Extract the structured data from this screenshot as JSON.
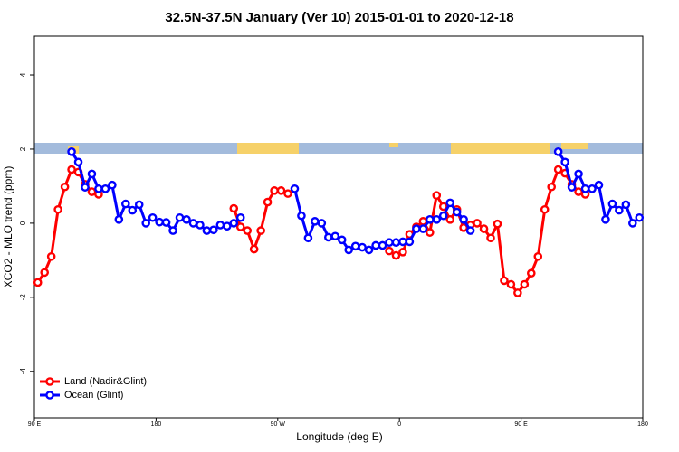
{
  "chart_data": {
    "type": "line",
    "title": "32.5N-37.5N January (Ver 10)   2015-01-01 to 2020-12-18",
    "x_label": "Longitude (deg E)",
    "y_label": "XCO2 - MLO trend (ppm)",
    "x": [
      92.5,
      97.5,
      102.5,
      107.5,
      112.5,
      117.5,
      122.5,
      127.5,
      132.5,
      137.5,
      142.5,
      147.5,
      152.5,
      157.5,
      162.5,
      167.5,
      172.5,
      177.5,
      182.5,
      187.5,
      192.5,
      197.5,
      202.5,
      207.5,
      212.5,
      217.5,
      222.5,
      227.5,
      232.5,
      237.5,
      242.5,
      247.5,
      252.5,
      257.5,
      262.5,
      267.5,
      272.5,
      277.5,
      282.5,
      287.5,
      292.5,
      297.5,
      302.5,
      307.5,
      312.5,
      317.5,
      322.5,
      327.5,
      332.5,
      337.5,
      342.5,
      347.5,
      352.5,
      357.5,
      362.5,
      367.5,
      372.5,
      377.5,
      382.5,
      387.5,
      392.5,
      397.5,
      402.5,
      407.5,
      412.5,
      417.5,
      422.5,
      427.5,
      432.5,
      437.5,
      442.5,
      447.5,
      452.5,
      457.5,
      462.5,
      467.5,
      472.5,
      477.5,
      482.5,
      487.5,
      492.5,
      497.5,
      502.5,
      507.5,
      512.5,
      517.5,
      522.5,
      527.5,
      532.5,
      537.5
    ],
    "series": [
      {
        "name": "Land (Nadir&Glint)",
        "color": "#ff0000",
        "values": [
          -1.6,
          -1.33,
          -0.9,
          0.37,
          0.98,
          1.45,
          1.38,
          1.05,
          0.85,
          0.78,
          null,
          null,
          null,
          null,
          null,
          null,
          null,
          null,
          null,
          null,
          null,
          null,
          null,
          null,
          null,
          null,
          null,
          null,
          null,
          0.4,
          -0.1,
          -0.2,
          -0.7,
          -0.2,
          0.57,
          0.88,
          0.88,
          0.8,
          null,
          null,
          null,
          null,
          null,
          null,
          null,
          null,
          null,
          null,
          null,
          null,
          null,
          null,
          -0.75,
          -0.87,
          -0.78,
          -0.3,
          -0.1,
          0.05,
          -0.25,
          0.75,
          0.45,
          0.1,
          0.37,
          -0.12,
          -0.05,
          0,
          -0.15,
          -0.4,
          -0.02,
          -1.55,
          -1.65,
          -1.88,
          -1.65,
          -1.35,
          -0.9,
          0.37,
          0.98,
          1.45,
          1.35,
          1.05,
          0.85,
          0.78,
          null,
          null,
          null,
          null,
          null,
          null,
          null,
          null
        ]
      },
      {
        "name": "Ocean (Glint)",
        "color": "#0000ff",
        "values": [
          null,
          null,
          null,
          null,
          null,
          1.93,
          1.65,
          0.97,
          1.33,
          0.93,
          0.93,
          1.03,
          0.1,
          0.52,
          0.35,
          0.5,
          0,
          0.15,
          0.03,
          0.02,
          -0.2,
          0.15,
          0.1,
          0,
          -0.05,
          -0.2,
          -0.18,
          -0.05,
          -0.08,
          0,
          0.15,
          null,
          null,
          null,
          null,
          null,
          null,
          null,
          0.93,
          0.2,
          -0.4,
          0.05,
          0,
          -0.38,
          -0.35,
          -0.45,
          -0.72,
          -0.62,
          -0.65,
          -0.72,
          -0.6,
          -0.6,
          -0.52,
          -0.52,
          -0.5,
          -0.5,
          -0.15,
          -0.15,
          0.1,
          0.1,
          0.2,
          0.55,
          0.3,
          0.1,
          -0.2,
          null,
          null,
          null,
          null,
          null,
          null,
          null,
          null,
          null,
          null,
          null,
          null,
          1.93,
          1.65,
          0.97,
          1.33,
          0.93,
          0.93,
          1.03,
          0.1,
          0.52,
          0.35,
          0.5,
          0,
          0.15
        ]
      }
    ],
    "xlim": [
      90,
      540
    ],
    "xticks": [
      {
        "value": 90,
        "label": "90 E"
      },
      {
        "value": 180,
        "label": "180"
      },
      {
        "value": 270,
        "label": "90 W"
      },
      {
        "value": 360,
        "label": "0"
      },
      {
        "value": 450,
        "label": "90 E"
      },
      {
        "value": 540,
        "label": "180"
      }
    ],
    "ylim": [
      -5.25,
      5.05
    ],
    "yticks": [
      -4,
      -2,
      0,
      2,
      4
    ],
    "grid": false,
    "legend": "bottom-left"
  }
}
